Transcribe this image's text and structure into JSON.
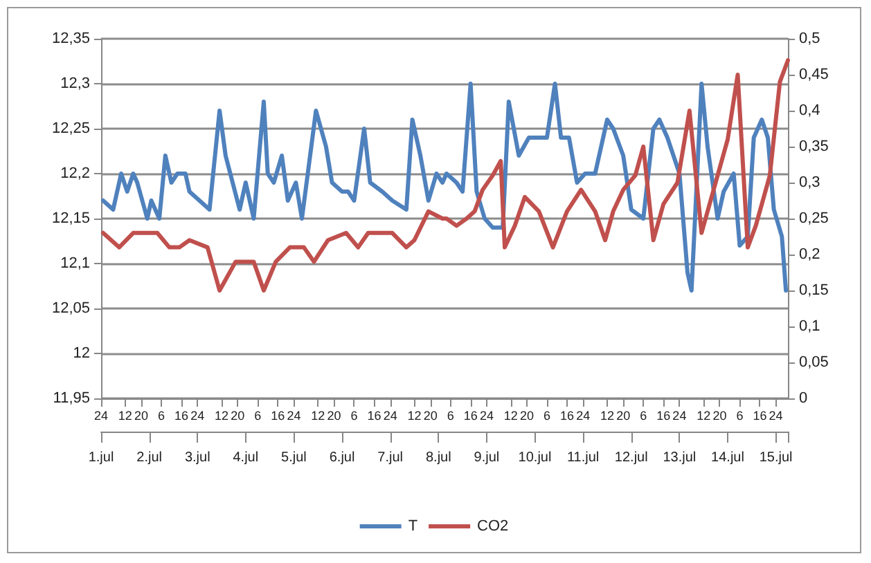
{
  "chart_data": {
    "type": "line",
    "x": [
      "--07-01T01:00",
      "--07-01T06:00",
      "--07-01T10:00",
      "--07-01T13:00",
      "--07-01T16:00",
      "--07-01T18:00",
      "--07-01T23:00",
      "--07-02T01:00",
      "--07-02T05:00",
      "--07-02T08:00",
      "--07-02T11:00",
      "--07-02T14:00",
      "--07-02T18:00",
      "--07-02T20:00",
      "--07-03T06:00",
      "--07-03T11:00",
      "--07-03T14:00",
      "--07-03T21:00",
      "--07-04T00:00",
      "--07-04T04:00",
      "--07-04T09:00",
      "--07-04T11:00",
      "--07-04T14:00",
      "--07-04T18:00",
      "--07-04T21:00",
      "--07-05T01:00",
      "--07-05T04:00",
      "--07-05T11:00",
      "--07-05T16:00",
      "--07-05T19:00",
      "--07-06T00:00",
      "--07-06T03:00",
      "--07-06T06:00",
      "--07-06T11:00",
      "--07-06T14:00",
      "--07-06T20:00",
      "--07-07T01:00",
      "--07-07T08:00",
      "--07-07T11:00",
      "--07-07T15:00",
      "--07-07T19:00",
      "--07-07T23:00",
      "--07-08T02:00",
      "--07-08T04:00",
      "--07-08T09:00",
      "--07-08T12:00",
      "--07-08T16:00",
      "--07-08T19:00",
      "--07-08T23:00",
      "--07-09T03:00",
      "--07-09T08:00",
      "--07-09T11:00",
      "--07-09T16:00",
      "--07-09T21:00",
      "--07-10T01:00",
      "--07-10T06:00",
      "--07-10T10:00",
      "--07-10T13:00",
      "--07-10T17:00",
      "--07-10T21:00",
      "--07-11T01:00",
      "--07-11T06:00",
      "--07-11T12:00",
      "--07-11T15:00",
      "--07-11T20:00",
      "--07-12T00:00",
      "--07-12T06:00",
      "--07-12T11:00",
      "--07-12T14:00",
      "--07-12T18:00",
      "--07-12T21:00",
      "--07-13T00:00",
      "--07-13T04:00",
      "--07-13T06:00",
      "--07-13T11:00",
      "--07-13T14:00",
      "--07-13T19:00",
      "--07-13T22:00",
      "--07-14T03:00",
      "--07-14T06:00",
      "--07-14T10:00",
      "--07-14T13:00",
      "--07-14T17:00",
      "--07-14T20:00",
      "--07-14T23:00",
      "--07-15T03:00",
      "--07-15T05:00"
    ],
    "series": [
      {
        "name": "T",
        "color": "#4f81bd",
        "values": [
          12.17,
          12.16,
          12.2,
          12.18,
          12.2,
          12.19,
          12.15,
          12.17,
          12.15,
          12.22,
          12.19,
          12.2,
          12.2,
          12.18,
          12.16,
          12.27,
          12.22,
          12.16,
          12.19,
          12.15,
          12.28,
          12.2,
          12.19,
          12.22,
          12.17,
          12.19,
          12.15,
          12.27,
          12.23,
          12.19,
          12.18,
          12.18,
          12.17,
          12.25,
          12.19,
          12.18,
          12.17,
          12.16,
          12.26,
          12.22,
          12.17,
          12.2,
          12.19,
          12.2,
          12.19,
          12.18,
          12.3,
          12.18,
          12.15,
          12.14,
          12.14,
          12.28,
          12.22,
          12.24,
          12.24,
          12.24,
          12.3,
          12.24,
          12.24,
          12.19,
          12.2,
          12.2,
          12.26,
          12.25,
          12.22,
          12.16,
          12.15,
          12.25,
          12.26,
          12.24,
          12.22,
          12.2,
          12.09,
          12.07,
          12.3,
          12.23,
          12.15,
          12.18,
          12.2,
          12.12,
          12.13,
          12.24,
          12.26,
          12.24,
          12.16,
          12.13,
          12.07
        ]
      },
      {
        "name": "CO2",
        "color": "#c0504d",
        "axis": "y2",
        "x": [
          "--07-01T01:00",
          "--07-01T09:00",
          "--07-01T16:00",
          "--07-02T04:00",
          "--07-02T10:00",
          "--07-02T15:00",
          "--07-02T20:00",
          "--07-03T05:00",
          "--07-03T11:00",
          "--07-03T19:00",
          "--07-04T04:00",
          "--07-04T09:00",
          "--07-04T15:00",
          "--07-04T22:00",
          "--07-05T05:00",
          "--07-05T10:00",
          "--07-05T17:00",
          "--07-06T02:00",
          "--07-06T08:00",
          "--07-06T13:00",
          "--07-07T01:00",
          "--07-07T08:00",
          "--07-07T12:00",
          "--07-07T19:00",
          "--07-08T02:00",
          "--07-08T04:00",
          "--07-08T09:00",
          "--07-08T14:00",
          "--07-08T18:00",
          "--07-08T22:00",
          "--07-09T03:00",
          "--07-09T07:00",
          "--07-09T09:00",
          "--07-09T14:00",
          "--07-09T19:00",
          "--07-10T02:00",
          "--07-10T09:00",
          "--07-10T16:00",
          "--07-10T23:00",
          "--07-11T06:00",
          "--07-11T11:00",
          "--07-11T15:00",
          "--07-11T20:00",
          "--07-12T02:00",
          "--07-12T06:00",
          "--07-12T11:00",
          "--07-12T16:00",
          "--07-12T23:00",
          "--07-13T05:00",
          "--07-13T11:00",
          "--07-13T18:00",
          "--07-14T00:00",
          "--07-14T05:00",
          "--07-14T10:00",
          "--07-14T14:00",
          "--07-14T21:00",
          "--07-15T02:00",
          "--07-15T06:00"
        ],
        "values": [
          0.23,
          0.21,
          0.23,
          0.23,
          0.21,
          0.21,
          0.22,
          0.21,
          0.15,
          0.19,
          0.19,
          0.15,
          0.19,
          0.21,
          0.21,
          0.19,
          0.22,
          0.23,
          0.21,
          0.23,
          0.23,
          0.21,
          0.22,
          0.26,
          0.25,
          0.25,
          0.24,
          0.25,
          0.26,
          0.29,
          0.31,
          0.33,
          0.21,
          0.24,
          0.28,
          0.26,
          0.21,
          0.26,
          0.29,
          0.26,
          0.22,
          0.26,
          0.29,
          0.31,
          0.35,
          0.22,
          0.27,
          0.3,
          0.4,
          0.23,
          0.3,
          0.36,
          0.45,
          0.21,
          0.24,
          0.31,
          0.44,
          0.47
        ]
      }
    ],
    "xlim": [
      "--07-01T00:00",
      "--07-15T06:00"
    ],
    "xticks": [
      {
        "value": "--07-01T00:00",
        "label": "24"
      },
      {
        "value": "--07-01T12:00",
        "label": "12"
      },
      {
        "value": "--07-01T20:00",
        "label": "20"
      },
      {
        "value": "--07-02T06:00",
        "label": "6"
      },
      {
        "value": "--07-02T16:00",
        "label": "16"
      },
      {
        "value": "--07-03T00:00",
        "label": "24"
      },
      {
        "value": "--07-03T12:00",
        "label": "12"
      },
      {
        "value": "--07-03T20:00",
        "label": "20"
      },
      {
        "value": "--07-04T06:00",
        "label": "6"
      },
      {
        "value": "--07-04T16:00",
        "label": "16"
      },
      {
        "value": "--07-05T00:00",
        "label": "24"
      },
      {
        "value": "--07-05T12:00",
        "label": "12"
      },
      {
        "value": "--07-05T20:00",
        "label": "20"
      },
      {
        "value": "--07-06T06:00",
        "label": "6"
      },
      {
        "value": "--07-06T16:00",
        "label": "16"
      },
      {
        "value": "--07-07T00:00",
        "label": "24"
      },
      {
        "value": "--07-07T12:00",
        "label": "12"
      },
      {
        "value": "--07-07T20:00",
        "label": "20"
      },
      {
        "value": "--07-08T06:00",
        "label": "6"
      },
      {
        "value": "--07-08T16:00",
        "label": "16"
      },
      {
        "value": "--07-09T00:00",
        "label": "24"
      },
      {
        "value": "--07-09T12:00",
        "label": "12"
      },
      {
        "value": "--07-09T20:00",
        "label": "20"
      },
      {
        "value": "--07-10T06:00",
        "label": "6"
      },
      {
        "value": "--07-10T16:00",
        "label": "16"
      },
      {
        "value": "--07-11T00:00",
        "label": "24"
      },
      {
        "value": "--07-11T12:00",
        "label": "12"
      },
      {
        "value": "--07-11T20:00",
        "label": "20"
      },
      {
        "value": "--07-12T06:00",
        "label": "6"
      },
      {
        "value": "--07-12T16:00",
        "label": "16"
      },
      {
        "value": "--07-13T00:00",
        "label": "24"
      },
      {
        "value": "--07-13T12:00",
        "label": "12"
      },
      {
        "value": "--07-13T20:00",
        "label": "20"
      },
      {
        "value": "--07-14T06:00",
        "label": "6"
      },
      {
        "value": "--07-14T16:00",
        "label": "16"
      },
      {
        "value": "--07-15T00:00",
        "label": "24"
      }
    ],
    "x2lim": [
      "--07-01T00:00",
      "--07-15T06:00"
    ],
    "x2ticks": [
      {
        "value": "--07-01",
        "label": "1.jul"
      },
      {
        "value": "--07-02",
        "label": "2.jul"
      },
      {
        "value": "--07-03",
        "label": "3.jul"
      },
      {
        "value": "--07-04",
        "label": "4.jul"
      },
      {
        "value": "--07-05",
        "label": "5.jul"
      },
      {
        "value": "--07-06",
        "label": "6.jul"
      },
      {
        "value": "--07-07",
        "label": "7.jul"
      },
      {
        "value": "--07-08",
        "label": "8.jul"
      },
      {
        "value": "--07-09",
        "label": "9.jul"
      },
      {
        "value": "--07-10",
        "label": "10.jul"
      },
      {
        "value": "--07-11",
        "label": "11.jul"
      },
      {
        "value": "--07-12",
        "label": "12.jul"
      },
      {
        "value": "--07-13",
        "label": "13.jul"
      },
      {
        "value": "--07-14",
        "label": "14.jul"
      },
      {
        "value": "--07-15",
        "label": "15.jul"
      }
    ],
    "ylim": [
      11.95,
      12.35
    ],
    "yticks": [
      {
        "value": 11.95,
        "label": "11,95"
      },
      {
        "value": 12,
        "label": "12"
      },
      {
        "value": 12.05,
        "label": "12,05"
      },
      {
        "value": 12.1,
        "label": "12,1"
      },
      {
        "value": 12.15,
        "label": "12,15"
      },
      {
        "value": 12.2,
        "label": "12,2"
      },
      {
        "value": 12.25,
        "label": "12,25"
      },
      {
        "value": 12.3,
        "label": "12,3"
      },
      {
        "value": 12.35,
        "label": "12,35"
      }
    ],
    "y2lim": [
      0,
      0.5
    ],
    "y2ticks": [
      {
        "value": 0,
        "label": "0"
      },
      {
        "value": 0.05,
        "label": "0,05"
      },
      {
        "value": 0.1,
        "label": "0,1"
      },
      {
        "value": 0.15,
        "label": "0,15"
      },
      {
        "value": 0.2,
        "label": "0,2"
      },
      {
        "value": 0.25,
        "label": "0,25"
      },
      {
        "value": 0.3,
        "label": "0,3"
      },
      {
        "value": 0.35,
        "label": "0,35"
      },
      {
        "value": 0.4,
        "label": "0,4"
      },
      {
        "value": 0.45,
        "label": "0,45"
      },
      {
        "value": 0.5,
        "label": "0,5"
      }
    ],
    "grid": "y",
    "legend": "bottom",
    "marker": "none",
    "line_style": "solid"
  }
}
